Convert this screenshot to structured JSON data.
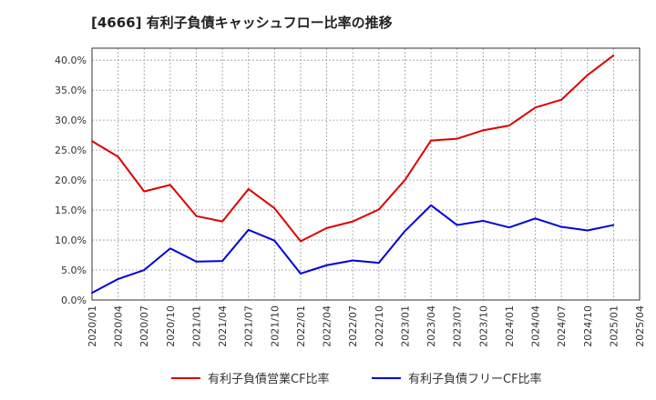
{
  "chart_data": {
    "type": "line",
    "title": "[4666]  有利子負債キャッシュフロー比率の推移",
    "xlabel": "",
    "ylabel": "",
    "ylim": [
      0,
      42
    ],
    "yticks": [
      0,
      5,
      10,
      15,
      20,
      25,
      30,
      35,
      40
    ],
    "ytick_labels": [
      "0.0%",
      "5.0%",
      "10.0%",
      "15.0%",
      "20.0%",
      "25.0%",
      "30.0%",
      "35.0%",
      "40.0%"
    ],
    "x": [
      "2020/01",
      "2020/04",
      "2020/07",
      "2020/10",
      "2021/01",
      "2021/04",
      "2021/07",
      "2021/10",
      "2022/01",
      "2022/04",
      "2022/07",
      "2022/10",
      "2023/01",
      "2023/04",
      "2023/07",
      "2023/10",
      "2024/01",
      "2024/04",
      "2024/07",
      "2024/10",
      "2025/01",
      "2025/04"
    ],
    "grid": true,
    "legend_position": "bottom",
    "series": [
      {
        "name": "有利子負債営業CF比率",
        "color": "#dd0000",
        "values": [
          26.5,
          23.9,
          18.1,
          19.2,
          14.0,
          13.1,
          18.5,
          15.3,
          9.8,
          12.0,
          13.1,
          15.1,
          20.0,
          26.6,
          26.9,
          28.3,
          29.1,
          32.1,
          33.4,
          37.5,
          40.8,
          null
        ]
      },
      {
        "name": "有利子負債フリーCF比率",
        "color": "#0000dd",
        "values": [
          1.2,
          3.5,
          5.0,
          8.6,
          6.4,
          6.5,
          11.7,
          9.9,
          4.4,
          5.8,
          6.6,
          6.2,
          11.5,
          15.8,
          12.5,
          13.2,
          12.1,
          13.6,
          12.2,
          11.6,
          12.5,
          null
        ]
      }
    ]
  }
}
